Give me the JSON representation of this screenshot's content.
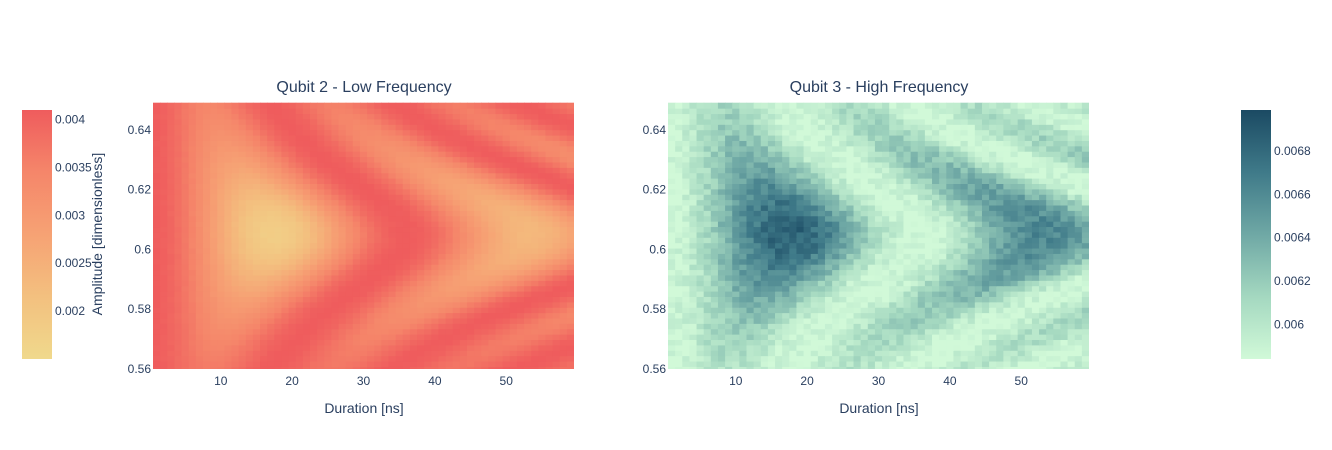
{
  "chart_data": [
    {
      "type": "heatmap",
      "title": "Qubit 2 - Low Frequency",
      "xlabel": "Duration [ns]",
      "ylabel": "Amplitude [dimensionless]",
      "xlim": [
        0.5,
        59.5
      ],
      "ylim": [
        0.56,
        0.65
      ],
      "x_ticks": [
        10,
        20,
        30,
        40,
        50
      ],
      "x_tick_labels": [
        "10",
        "20",
        "30",
        "40",
        "50"
      ],
      "y_ticks": [
        0.56,
        0.58,
        0.6,
        0.62,
        0.64
      ],
      "y_tick_labels": [
        "0.56",
        "0.58",
        "0.6",
        "0.62",
        "0.64"
      ],
      "x": {
        "start": 1,
        "step": 1,
        "count": 59
      },
      "y": {
        "start": 0.56,
        "step": 0.0018,
        "count": 50
      },
      "z_range": [
        0.0015,
        0.0041
      ],
      "center_amplitude": 0.6055,
      "colorscale": "reds-reversed",
      "colors": [
        "#f0d98c",
        "#f3c07f",
        "#f6a274",
        "#f5866a",
        "#ef5c5d"
      ],
      "noise": 0.02,
      "colorbar": {
        "placement": "left",
        "ticks": [
          0.002,
          0.0025,
          0.003,
          0.0035,
          0.004
        ],
        "tick_labels": [
          "0.002",
          "0.0025",
          "0.003",
          "0.0035",
          "0.004"
        ]
      }
    },
    {
      "type": "heatmap",
      "title": "Qubit 3 - High Frequency",
      "xlabel": "Duration [ns]",
      "ylabel": "",
      "xlim": [
        0.5,
        59.5
      ],
      "ylim": [
        0.56,
        0.65
      ],
      "x_ticks": [
        10,
        20,
        30,
        40,
        50
      ],
      "x_tick_labels": [
        "10",
        "20",
        "30",
        "40",
        "50"
      ],
      "y_ticks": [
        0.56,
        0.58,
        0.6,
        0.62,
        0.64
      ],
      "y_tick_labels": [
        "0.56",
        "0.58",
        "0.6",
        "0.62",
        "0.64"
      ],
      "x": {
        "start": 1,
        "step": 1,
        "count": 59
      },
      "y": {
        "start": 0.56,
        "step": 0.0018,
        "count": 50
      },
      "z_range": [
        0.00584,
        0.00699
      ],
      "center_amplitude": 0.6055,
      "colorscale": "teal",
      "colors": [
        "#d1f9d8",
        "#a4d8c0",
        "#6fa8a5",
        "#3f7a89",
        "#1b4a63"
      ],
      "noise": 0.18,
      "colorbar": {
        "placement": "right",
        "ticks": [
          0.006,
          0.0062,
          0.0064,
          0.0066,
          0.0068
        ],
        "tick_labels": [
          "0.006",
          "0.0062",
          "0.0064",
          "0.0066",
          "0.0068"
        ]
      }
    }
  ]
}
